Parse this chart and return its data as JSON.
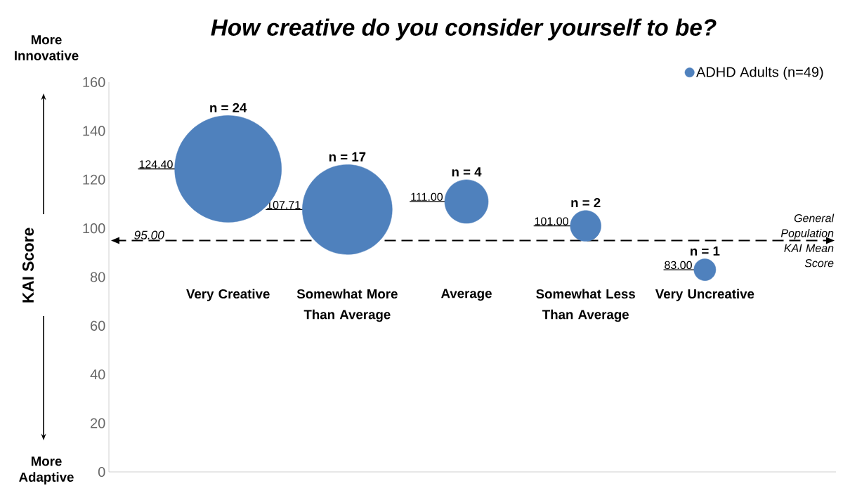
{
  "chart_data": {
    "type": "bubble",
    "title": "How creative do you consider yourself to be?",
    "ylabel": "KAI Score",
    "categories": [
      "Very Creative",
      "Somewhat More Than Average",
      "Average",
      "Somewhat Less Than Average",
      "Very Uncreative"
    ],
    "series": [
      {
        "name": "ADHD Adults (n=49)",
        "color": "#4f81bd",
        "values": [
          124.4,
          107.71,
          111.0,
          101.0,
          83.0
        ],
        "sizes": [
          1,
          0.708,
          0.167,
          0.083,
          0.042
        ],
        "value_labels": [
          "124.40",
          "107.71",
          "111.00",
          "101.00",
          "83.00"
        ]
      }
    ],
    "ylim": [
      0,
      160
    ],
    "yticks": [
      0,
      20,
      40,
      60,
      80,
      100,
      120,
      140,
      160
    ],
    "ref_lines": [
      {
        "axis": "y",
        "value": 95,
        "label": "General Population KAI Mean Score",
        "line_style": "dashed"
      }
    ],
    "annotations": [
      "More Innovative",
      "More Adaptive",
      {
        "text": "95.00",
        "y": 95
      },
      "n = 24",
      "n = 17",
      "n = 4",
      "n = 2",
      "n = 1"
    ],
    "legend": "top right",
    "grid": false
  }
}
